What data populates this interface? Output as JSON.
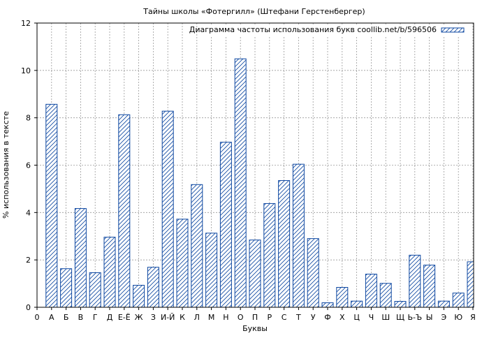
{
  "chart_data": {
    "type": "bar",
    "title": "Тайны школы «Фотергилл» (Штефани Герстенбергер)",
    "xlabel": "Буквы",
    "ylabel": "% использования в тексте",
    "ylim": [
      0,
      12
    ],
    "yticks": [
      "0",
      "2",
      "4",
      "6",
      "8",
      "10",
      "12"
    ],
    "x_zero_label": "0",
    "grid": true,
    "legend": {
      "label": "Диаграмма частоты использования букв coollib.net/b/596506",
      "position": "top-right"
    },
    "colors": {
      "bar_stroke": "#0d47a1",
      "hatch": "#0d47a1",
      "grid": "#999999"
    },
    "categories": [
      "А",
      "Б",
      "В",
      "Г",
      "Д",
      "Е-Ё",
      "Ж",
      "З",
      "И-Й",
      "К",
      "Л",
      "М",
      "Н",
      "О",
      "П",
      "Р",
      "С",
      "Т",
      "У",
      "Ф",
      "Х",
      "Ц",
      "Ч",
      "Ш",
      "Щ",
      "Ь-Ъ",
      "Ы",
      "Э",
      "Ю",
      "Я"
    ],
    "values": [
      8.57,
      1.63,
      4.17,
      1.46,
      2.96,
      8.13,
      0.93,
      1.69,
      8.28,
      3.72,
      5.18,
      3.13,
      6.97,
      10.49,
      2.84,
      4.38,
      5.35,
      6.04,
      2.9,
      0.19,
      0.84,
      0.26,
      1.4,
      1.01,
      0.25,
      2.2,
      1.78,
      0.26,
      0.6,
      1.92
    ]
  }
}
